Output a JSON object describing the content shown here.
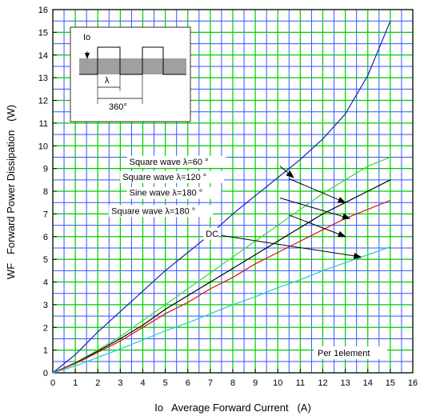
{
  "chart_data": {
    "type": "line",
    "xlabel": "Io   Average Forward Current   (A)",
    "ylabel": "WF   Forward Power Dissipation   (W)",
    "xlim": [
      0,
      16
    ],
    "ylim": [
      0,
      16
    ],
    "xticks": [
      0,
      1,
      2,
      3,
      4,
      5,
      6,
      7,
      8,
      9,
      10,
      11,
      12,
      13,
      14,
      15,
      16
    ],
    "yticks": [
      0,
      1,
      2,
      3,
      4,
      5,
      6,
      7,
      8,
      9,
      10,
      11,
      12,
      13,
      14,
      15,
      16
    ],
    "grid": true,
    "grid_color": "#00cc00",
    "minor_grid_color": "#3355ff",
    "x": [
      0,
      1,
      2,
      3,
      4,
      5,
      6,
      7,
      8,
      9,
      10,
      11,
      12,
      13,
      14,
      15
    ],
    "series": [
      {
        "name": "Square wave λ=60°",
        "color": "#1a1acc",
        "values": [
          0,
          0.8,
          1.8,
          2.7,
          3.6,
          4.5,
          5.3,
          6.1,
          7.0,
          7.8,
          8.6,
          9.4,
          10.3,
          11.4,
          13.1,
          15.5
        ]
      },
      {
        "name": "Square wave λ=120°",
        "color": "#33dd33",
        "values": [
          0,
          0.45,
          1.0,
          1.6,
          2.3,
          3.0,
          3.7,
          4.4,
          5.1,
          5.8,
          6.5,
          7.2,
          7.9,
          8.5,
          9.1,
          9.5
        ]
      },
      {
        "name": "Sine wave λ=180°",
        "color": "#000000",
        "values": [
          0,
          0.42,
          0.95,
          1.5,
          2.1,
          2.8,
          3.4,
          4.0,
          4.6,
          5.2,
          5.8,
          6.4,
          7.0,
          7.5,
          8.0,
          8.5
        ]
      },
      {
        "name": "Square wave λ=180°",
        "color": "#dd1111",
        "values": [
          0,
          0.4,
          0.9,
          1.4,
          2.0,
          2.6,
          3.1,
          3.7,
          4.2,
          4.8,
          5.3,
          5.8,
          6.3,
          6.8,
          7.2,
          7.6
        ]
      },
      {
        "name": "DC",
        "color": "#22cccc",
        "values": [
          0,
          0.3,
          0.68,
          1.05,
          1.45,
          1.85,
          2.2,
          2.6,
          3.0,
          3.35,
          3.75,
          4.1,
          4.5,
          4.85,
          5.2,
          5.55
        ]
      }
    ],
    "annotations": [
      {
        "text": "Square wave  λ=60 °",
        "series": 0,
        "label_at": [
          3.4,
          9.17
        ],
        "arrow_from": [
          10.1,
          9.1
        ],
        "arrow_to": [
          10.7,
          8.6
        ]
      },
      {
        "text": "Square wave  λ=120 °",
        "series": 1,
        "label_at": [
          3.1,
          8.5
        ],
        "arrow_from": [
          10.5,
          8.55
        ],
        "arrow_to": [
          13.0,
          7.5
        ]
      },
      {
        "text": "Sine wave  λ=180 °",
        "series": 2,
        "label_at": [
          3.4,
          7.8
        ],
        "arrow_from": [
          10.1,
          7.7
        ],
        "arrow_to": [
          13.2,
          6.8
        ]
      },
      {
        "text": "Square wave  λ=180 °",
        "series": 3,
        "label_at": [
          2.6,
          7.0
        ],
        "arrow_from": [
          10.5,
          6.95
        ],
        "arrow_to": [
          13.0,
          6.0
        ]
      },
      {
        "text": "DC",
        "series": 4,
        "label_at": [
          6.8,
          6.0
        ],
        "arrow_from": [
          7.5,
          6.05
        ],
        "arrow_to": [
          13.7,
          5.1
        ]
      }
    ],
    "note": "Per 1element",
    "inset": {
      "io_label": "Io",
      "lambda_label": "λ",
      "period_label": "360°"
    }
  }
}
